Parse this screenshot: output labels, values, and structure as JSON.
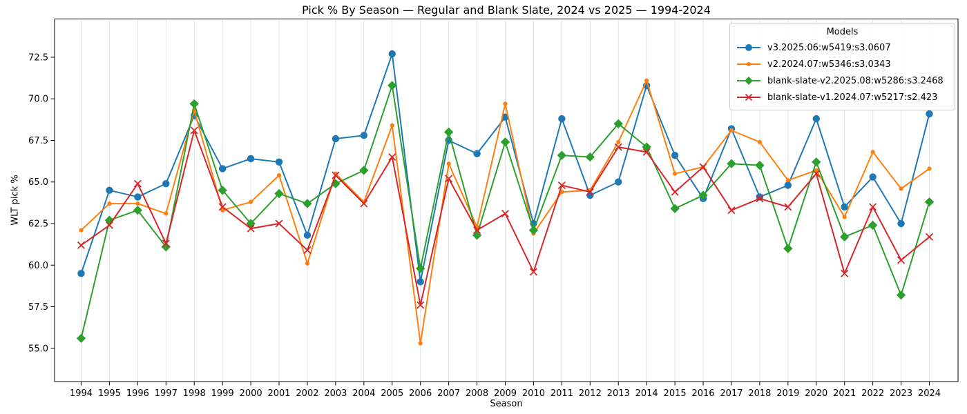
{
  "chart_data": {
    "type": "line",
    "title": "Pick % By Season — Regular and Blank Slate, 2024 vs 2025 — 1994-2024",
    "xlabel": "Season",
    "ylabel": "WLT pick %",
    "legend_title": "Models",
    "legend_position": "upper right",
    "grid": "vertical-only",
    "ylim": [
      53.0,
      74.8
    ],
    "yticks": [
      55.0,
      57.5,
      60.0,
      62.5,
      65.0,
      67.5,
      70.0,
      72.5
    ],
    "x": [
      1994,
      1995,
      1996,
      1997,
      1998,
      1999,
      2000,
      2001,
      2002,
      2003,
      2004,
      2005,
      2006,
      2007,
      2008,
      2009,
      2010,
      2011,
      2012,
      2013,
      2014,
      2015,
      2016,
      2017,
      2018,
      2019,
      2020,
      2021,
      2022,
      2023,
      2024
    ],
    "series": [
      {
        "name": "v3.2025.06:w5419:s3.0607",
        "color": "#1f77b4",
        "marker": "circle",
        "values": [
          59.5,
          64.5,
          64.1,
          64.9,
          69.0,
          65.8,
          66.4,
          66.2,
          61.8,
          67.6,
          67.8,
          72.7,
          59.0,
          67.5,
          66.7,
          68.9,
          62.5,
          68.8,
          64.2,
          65.0,
          70.8,
          66.6,
          64.0,
          68.2,
          64.1,
          64.8,
          68.8,
          63.5,
          65.3,
          62.5,
          69.1
        ]
      },
      {
        "name": "v2.2024.07:w5346:s3.0343",
        "color": "#ff7f0e",
        "marker": "dot",
        "values": [
          62.1,
          63.7,
          63.7,
          63.1,
          69.3,
          63.3,
          63.8,
          65.4,
          60.1,
          65.5,
          63.8,
          68.4,
          55.3,
          66.1,
          62.3,
          69.7,
          61.9,
          64.4,
          64.5,
          67.4,
          71.1,
          65.5,
          65.9,
          68.1,
          67.4,
          65.1,
          65.7,
          62.9,
          66.8,
          64.6,
          65.8
        ]
      },
      {
        "name": "blank-slate-v2.2025.08:w5286:s3.2468",
        "color": "#2ca02c",
        "marker": "diamond",
        "values": [
          55.6,
          62.7,
          63.3,
          61.1,
          69.7,
          64.5,
          62.5,
          64.3,
          63.7,
          64.9,
          65.7,
          70.8,
          59.8,
          68.0,
          61.8,
          67.4,
          62.1,
          66.6,
          66.5,
          68.5,
          67.1,
          63.4,
          64.2,
          66.1,
          66.0,
          61.0,
          66.2,
          61.7,
          62.4,
          58.2,
          63.8
        ]
      },
      {
        "name": "blank-slate-v1.2024.07:w5217:s2.423",
        "color": "#d62728",
        "marker": "x",
        "values": [
          61.2,
          62.4,
          64.9,
          61.3,
          68.1,
          63.5,
          62.2,
          62.5,
          60.9,
          65.4,
          63.7,
          66.5,
          57.6,
          65.2,
          62.1,
          63.1,
          59.6,
          64.8,
          64.4,
          67.1,
          66.8,
          64.4,
          65.9,
          63.3,
          64.0,
          63.5,
          65.5,
          59.5,
          63.5,
          60.3,
          61.7
        ]
      }
    ]
  }
}
